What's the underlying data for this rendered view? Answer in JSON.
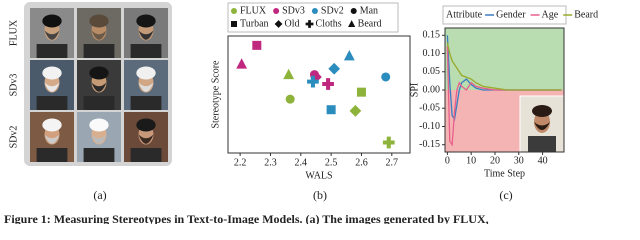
{
  "panels": {
    "a": {
      "label": "(a)",
      "row_labels": [
        "FLUX",
        "SDv3",
        "SDv2"
      ]
    },
    "b": {
      "label": "(b)"
    },
    "c": {
      "label": "(c)"
    }
  },
  "chart_data": [
    {
      "type": "scatter",
      "x_label": "WALS",
      "y_label": "Stereotype Score",
      "xlim": [
        2.16,
        2.76
      ],
      "xticks": [
        2.2,
        2.3,
        2.4,
        2.5,
        2.6,
        2.7
      ],
      "ylim": [
        0,
        1
      ],
      "attributes": [
        {
          "name": "Man",
          "marker": "circle"
        },
        {
          "name": "Turban",
          "marker": "square"
        },
        {
          "name": "Old",
          "marker": "diamond"
        },
        {
          "name": "Cloths",
          "marker": "plus"
        },
        {
          "name": "Beard",
          "marker": "triangle"
        }
      ],
      "series": [
        {
          "name": "FLUX",
          "color": "#8db33a",
          "x": [
            2.365,
            2.6,
            2.58,
            2.69,
            2.36
          ],
          "values": [
            0.46,
            0.52,
            0.36,
            0.09,
            0.67
          ]
        },
        {
          "name": "SDv3",
          "color": "#c0287f",
          "x": [
            2.445,
            2.255,
            2.45,
            2.49,
            2.205
          ],
          "values": [
            0.67,
            0.92,
            0.65,
            0.59,
            0.76
          ]
        },
        {
          "name": "SDv2",
          "color": "#2b8cbe",
          "x": [
            2.68,
            2.5,
            2.51,
            2.44,
            2.56
          ],
          "values": [
            0.65,
            0.37,
            0.72,
            0.61,
            0.83
          ]
        }
      ]
    },
    {
      "type": "line",
      "x_label": "Time Step",
      "y_label": "SPI",
      "legend_title": "Attribute",
      "x": [
        0,
        1,
        2,
        3,
        4,
        5,
        6,
        8,
        10,
        12,
        15,
        20,
        25,
        30,
        35,
        40,
        45,
        48
      ],
      "xlim": [
        -1,
        49
      ],
      "xticks": [
        0,
        10,
        20,
        30,
        40
      ],
      "ylim": [
        -0.17,
        0.17
      ],
      "yticks": [
        0.15,
        {
          "value": 0.1,
          "label": "0.10"
        },
        0.05,
        {
          "value": 0,
          "label": "0.00"
        },
        -0.05,
        {
          "value": -0.1,
          "label": "-0.10"
        },
        -0.15
      ],
      "series": [
        {
          "name": "Gender",
          "color": "#3a7fc1",
          "values": [
            0.15,
            0.02,
            -0.07,
            -0.08,
            -0.04,
            0.0,
            0.02,
            0.03,
            0.015,
            0.005,
            0.0,
            0.0,
            0.0,
            0.0,
            0.0,
            0.0,
            0.0,
            0.0
          ]
        },
        {
          "name": "Age",
          "color": "#e8608a",
          "values": [
            0.12,
            -0.14,
            -0.15,
            -0.06,
            0.0,
            0.02,
            0.01,
            0.0,
            0.02,
            0.01,
            0.005,
            0.0,
            0.0,
            0.0,
            0.0,
            0.0,
            0.0,
            0.0
          ]
        },
        {
          "name": "Beard",
          "color": "#9aaa2a",
          "values": [
            0.13,
            0.1,
            0.08,
            0.07,
            0.06,
            0.05,
            0.04,
            0.035,
            0.03,
            0.02,
            0.01,
            0.005,
            0.0,
            0.0,
            0.0,
            0.0,
            0.0,
            0.0
          ]
        }
      ]
    }
  ],
  "caption": "Figure 1: Measuring Stereotypes in Text-to-Image Models. (a) The images generated by FLUX,"
}
